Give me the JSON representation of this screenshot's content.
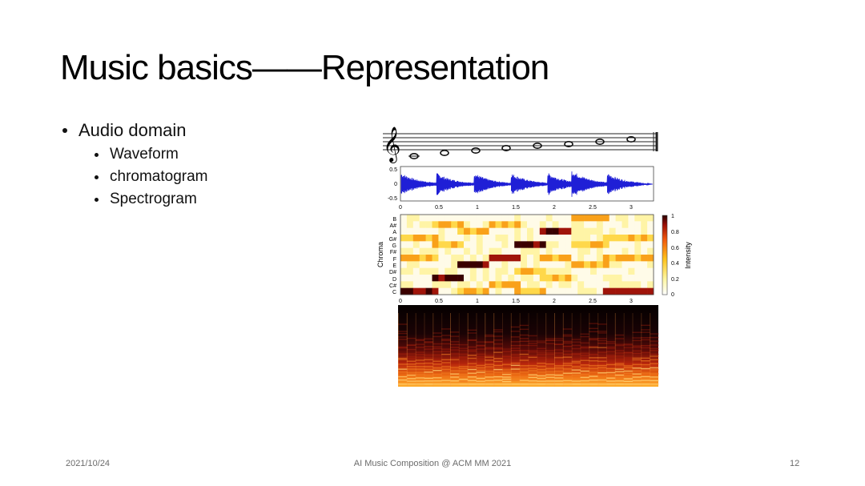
{
  "slide": {
    "title": "Music basics——Representation",
    "bullets": {
      "main": "Audio domain",
      "items": [
        "Waveform",
        "chromatogram",
        "Spectrogram"
      ]
    },
    "footer": {
      "date": "2021/10/24",
      "center": "AI Music Composition @ ACM MM 2021",
      "page": "12"
    }
  },
  "figure": {
    "waveform": {
      "y_ticks": [
        "0.5",
        "0",
        "-0.5"
      ],
      "x_ticks": [
        "0",
        "0.5",
        "1",
        "1.5",
        "2",
        "2.5",
        "3"
      ],
      "color": "#1f1fd6"
    },
    "chroma": {
      "ylabel": "Chroma",
      "y_labels": [
        "B",
        "A#",
        "A",
        "G#",
        "G",
        "F#",
        "F",
        "E",
        "D#",
        "D",
        "C#",
        "C"
      ],
      "x_ticks": [
        "0",
        "0.5",
        "1",
        "1.5",
        "2",
        "2.5",
        "3"
      ],
      "colorbar_label": "Intensity",
      "colorbar_ticks": [
        "1",
        "0.8",
        "0.6",
        "0.4",
        "0.2",
        "0"
      ]
    }
  }
}
